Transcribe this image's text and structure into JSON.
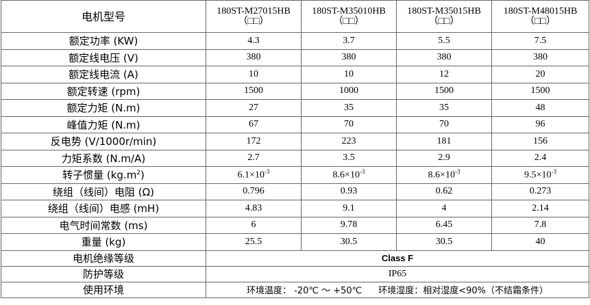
{
  "header": {
    "title": "电机型号",
    "models": [
      {
        "name": "180ST-M27015HB",
        "suffix": "（□□）"
      },
      {
        "name": "180ST-M35010HB",
        "suffix": "（□□）"
      },
      {
        "name": "180ST-M35015HB",
        "suffix": "（□□）"
      },
      {
        "name": "180ST-M48015HB",
        "suffix": "（□□）"
      }
    ]
  },
  "rows": [
    {
      "label": "额定功率 (KW)",
      "values": [
        "4.3",
        "3.7",
        "5.5",
        "7.5"
      ]
    },
    {
      "label": "额定线电压 (V)",
      "values": [
        "380",
        "380",
        "380",
        "380"
      ]
    },
    {
      "label": "额定线电流 (A)",
      "values": [
        "10",
        "10",
        "12",
        "20"
      ]
    },
    {
      "label": "额定转速 (rpm)",
      "values": [
        "1500",
        "1000",
        "1500",
        "1500"
      ]
    },
    {
      "label": "额定力矩 (N.m)",
      "values": [
        "27",
        "35",
        "35",
        "48"
      ]
    },
    {
      "label": "峰值力矩 (N.m)",
      "values": [
        "67",
        "70",
        "70",
        "96"
      ]
    },
    {
      "label": "反电势 (V/1000r/min)",
      "values": [
        "172",
        "223",
        "181",
        "156"
      ]
    },
    {
      "label": "力矩系数 (N.m/A)",
      "values": [
        "2.7",
        "3.5",
        "2.9",
        "2.4"
      ]
    },
    {
      "label": "转子惯量 (kg.m",
      "label_sup": "2",
      "label_after": ")",
      "values": [
        {
          "text": "6.1×10",
          "sup": "-3"
        },
        {
          "text": "8.6×10",
          "sup": "-3"
        },
        {
          "text": "8.6×10",
          "sup": "-3"
        },
        {
          "text": "9.5×10",
          "sup": "-3"
        }
      ]
    },
    {
      "label": "绕组（线间）电阻 (Ω)",
      "values": [
        "0.796",
        "0.93",
        "0.62",
        "0.273"
      ]
    },
    {
      "label": "绕组（线间）电感 (mH)",
      "values": [
        "4.83",
        "9.1",
        "4",
        "2.14"
      ]
    },
    {
      "label": "电气时间常数 (ms)",
      "values": [
        "6",
        "9.78",
        "6.45",
        "7.8"
      ]
    },
    {
      "label": "重量 (kg)",
      "values": [
        "25.5",
        "30.5",
        "30.5",
        "40"
      ]
    }
  ],
  "footer": [
    {
      "label": "电机绝缘等级",
      "value": "Class F"
    },
    {
      "label": "防护等级",
      "value": "IP65"
    },
    {
      "label": "使用环境",
      "temperature": "环境温度： -20℃ ～ +50℃",
      "humidity": "环境湿度：相对湿度<90%（不结霜条件）"
    }
  ]
}
